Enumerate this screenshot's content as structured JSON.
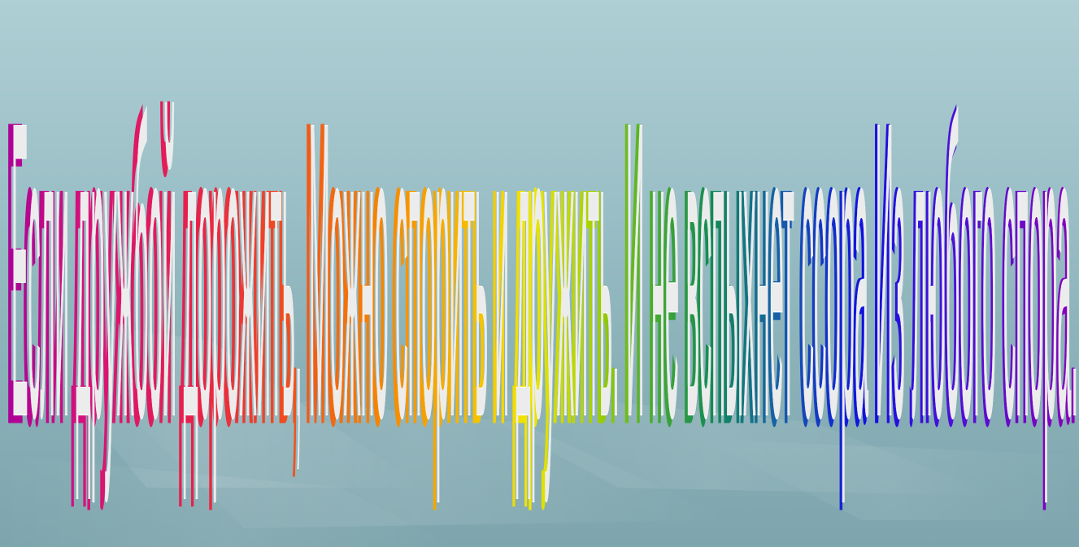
{
  "slide": {
    "text": "Если дружбой дорожить, Можно спорить и дружить. И не вспыхнет ссора Из любого спора.",
    "rainbow_colors": [
      "#a8009a",
      "#d6127a",
      "#e8204a",
      "#f0501c",
      "#f58a00",
      "#f6b800",
      "#f0e600",
      "#a6d000",
      "#4caf2a",
      "#138a55",
      "#1660a8",
      "#1010e0",
      "#4a10d8",
      "#8a00b8"
    ]
  }
}
